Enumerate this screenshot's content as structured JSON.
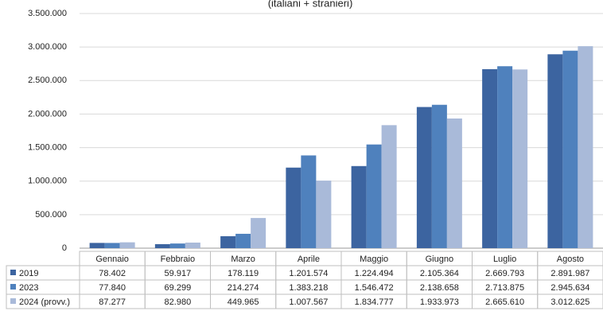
{
  "chart_data": {
    "type": "bar",
    "title": "(italiani + stranieri)",
    "categories": [
      "Gennaio",
      "Febbraio",
      "Marzo",
      "Aprile",
      "Maggio",
      "Giugno",
      "Luglio",
      "Agosto"
    ],
    "series": [
      {
        "name": "2019",
        "color": "#3c64a0",
        "values": [
          78402,
          59917,
          178119,
          1201574,
          1224494,
          2105364,
          2669793,
          2891987
        ],
        "value_labels": [
          "78.402",
          "59.917",
          "178.119",
          "1.201.574",
          "1.224.494",
          "2.105.364",
          "2.669.793",
          "2.891.987"
        ]
      },
      {
        "name": "2023",
        "color": "#4f81bd",
        "values": [
          77840,
          69299,
          214274,
          1383218,
          1546472,
          2138658,
          2713875,
          2945634
        ],
        "value_labels": [
          "77.840",
          "69.299",
          "214.274",
          "1.383.218",
          "1.546.472",
          "2.138.658",
          "2.713.875",
          "2.945.634"
        ]
      },
      {
        "name": "2024 (provv.)",
        "color": "#a9bad9",
        "values": [
          87277,
          82980,
          449965,
          1007567,
          1834777,
          1933973,
          2665610,
          3012625
        ],
        "value_labels": [
          "87.277",
          "82.980",
          "449.965",
          "1.007.567",
          "1.834.777",
          "1.933.973",
          "2.665.610",
          "3.012.625"
        ]
      }
    ],
    "ylim": [
      0,
      3500000
    ],
    "yticks": [
      0,
      {
        "value": 500000,
        "label": "500.000"
      },
      {
        "value": 1000000,
        "label": "1.000.000"
      },
      {
        "value": 1500000,
        "label": "1.500.000"
      },
      {
        "value": 2000000,
        "label": "2.000.000"
      },
      {
        "value": 2500000,
        "label": "2.500.000"
      },
      {
        "value": 3000000,
        "label": "3.000.000"
      },
      {
        "value": 3500000,
        "label": "3.500.000"
      }
    ],
    "grid": true
  }
}
